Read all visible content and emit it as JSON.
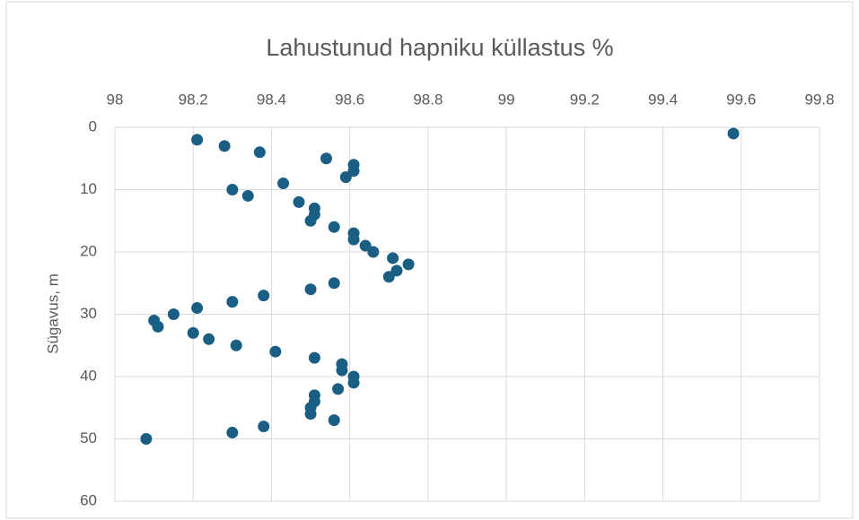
{
  "chart_data": {
    "type": "scatter",
    "title": "Lahustunud hapniku küllastus %",
    "ylabel": "Sügavus, m",
    "x": [
      99.58,
      98.21,
      98.28,
      98.37,
      98.54,
      98.61,
      98.61,
      98.59,
      98.43,
      98.3,
      98.34,
      98.47,
      98.51,
      98.51,
      98.5,
      98.56,
      98.61,
      98.61,
      98.64,
      98.66,
      98.71,
      98.75,
      98.72,
      98.7,
      98.56,
      98.5,
      98.38,
      98.3,
      98.21,
      98.15,
      98.1,
      98.11,
      98.2,
      98.24,
      98.31,
      98.41,
      98.51,
      98.58,
      98.58,
      98.61,
      98.61,
      98.57,
      98.51,
      98.51,
      98.5,
      98.5,
      98.56,
      98.38,
      98.3,
      98.08
    ],
    "values": [
      1,
      2,
      3,
      4,
      5,
      6,
      7,
      8,
      9,
      10,
      11,
      12,
      13,
      14,
      15,
      16,
      17,
      18,
      19,
      20,
      21,
      22,
      23,
      24,
      25,
      26,
      27,
      28,
      29,
      30,
      31,
      32,
      33,
      34,
      35,
      36,
      37,
      38,
      39,
      40,
      41,
      42,
      43,
      44,
      45,
      46,
      47,
      48,
      49,
      50
    ],
    "color": "#1b5e84",
    "xlim": [
      98,
      99.8
    ],
    "xticks": [
      98,
      98.2,
      98.4,
      98.6,
      98.8,
      99,
      99.2,
      99.4,
      99.6,
      99.8
    ],
    "ylim": [
      0,
      60
    ],
    "yticks": [
      0,
      10,
      20,
      30,
      40,
      50,
      60
    ],
    "y_inverted": true,
    "x_axis_position": "top",
    "grid": true
  }
}
